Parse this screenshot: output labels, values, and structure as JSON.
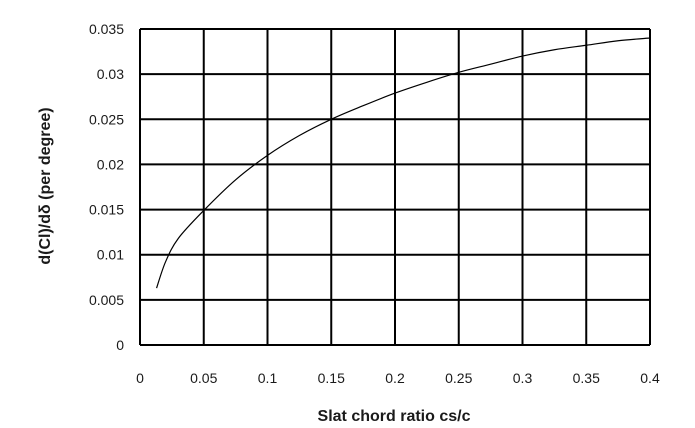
{
  "chart_data": {
    "type": "line",
    "title": "",
    "xlabel": "Slat chord ratio cs/c",
    "ylabel": "d(Cl)/dδ (per degree)",
    "xlim": [
      0,
      0.4
    ],
    "ylim": [
      0,
      0.035
    ],
    "grid": true,
    "x_ticks": [
      "0",
      "0.05",
      "0.1",
      "0.15",
      "0.2",
      "0.25",
      "0.3",
      "0.35",
      "0.4"
    ],
    "y_ticks": [
      "0",
      "0.005",
      "0.01",
      "0.015",
      "0.02",
      "0.025",
      "0.03",
      "0.035"
    ],
    "series": [
      {
        "x": [
          0.013,
          0.02,
          0.03,
          0.05,
          0.075,
          0.1,
          0.125,
          0.15,
          0.175,
          0.2,
          0.225,
          0.25,
          0.275,
          0.3,
          0.325,
          0.35,
          0.375,
          0.4
        ],
        "y": [
          0.0063,
          0.0092,
          0.0118,
          0.0149,
          0.0183,
          0.021,
          0.0232,
          0.025,
          0.0265,
          0.0279,
          0.0291,
          0.0302,
          0.0311,
          0.032,
          0.0327,
          0.0332,
          0.0337,
          0.034
        ]
      }
    ]
  }
}
